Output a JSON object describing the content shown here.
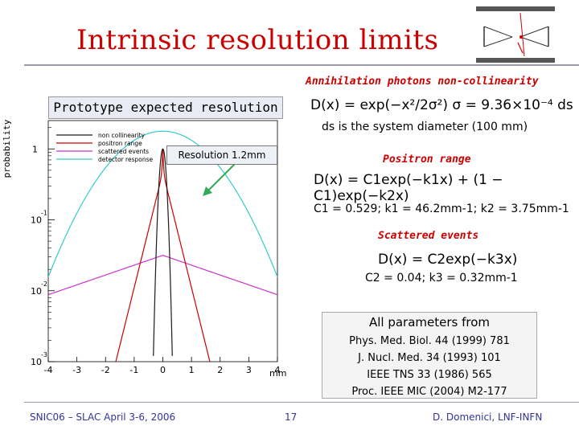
{
  "slide": {
    "title": "Intrinsic resolution limits",
    "footer_left": "SNIC06 – SLAC April 3-6, 2006",
    "page_number": "17",
    "footer_right": "D. Domenici, LNF-INFN"
  },
  "sections": {
    "annihilation_heading": "Annihilation photons non-collinearity",
    "prototype_label": "Prototype expected resolution",
    "ds_note": "ds is the system diameter (100 mm)",
    "resolution_label": "Resolution 1.2mm",
    "positron_heading": "Positron range",
    "positron_params": "C1 = 0.529; k1 = 46.2mm-1; k2 = 3.75mm-1",
    "scattered_heading": "Scattered events",
    "scattered_params": "C2 = 0.04; k3 = 0.32mm-1"
  },
  "formulas": {
    "annihilation": "D(x) = exp(−x²/2σ²)   σ = 9.36×10⁻⁴ ds",
    "positron": "D(x) = C1exp(−k1x) + (1 − C1)exp(−k2x)",
    "scattered": "D(x) = C2exp(−k3x)"
  },
  "references": {
    "title": "All parameters from",
    "items": [
      "Phys. Med. Biol. 44 (1999) 781",
      "J. Nucl. Med. 34 (1993) 101",
      "IEEE TNS 33 (1986) 565",
      "Proc. IEEE MIC (2004) M2-177"
    ]
  },
  "chart_data": {
    "type": "line",
    "ylabel": "probability",
    "xlabel": "mm",
    "x_ticks": [
      "-4",
      "-3",
      "-2",
      "-1",
      "0",
      "1",
      "2",
      "3",
      "4"
    ],
    "y_ticks": [
      "1",
      "10-1",
      "10-2",
      "10-3"
    ],
    "xlim": [
      -4,
      4
    ],
    "ylim_log10": [
      -3,
      0.4
    ],
    "y_scale": "log",
    "legend_position": "top-left",
    "series": [
      {
        "name": "non collinearity",
        "color": "#1a1a1a"
      },
      {
        "name": "positron range",
        "color": "#cc0000"
      },
      {
        "name": "scattered events",
        "color": "#cc33cc"
      },
      {
        "name": "detector response",
        "color": "#33cccc"
      }
    ]
  },
  "colors": {
    "title": "#cc0000",
    "heading": "#cc0000",
    "footer": "#333399"
  }
}
